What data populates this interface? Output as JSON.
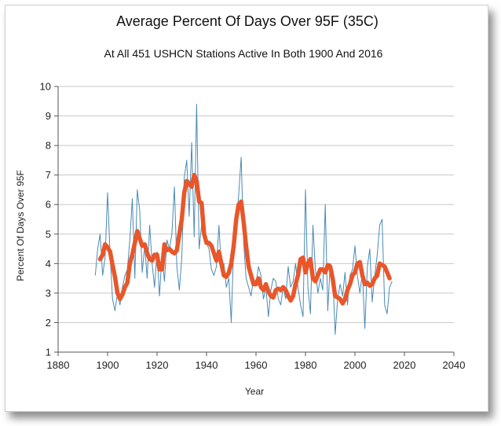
{
  "chart_data": {
    "type": "line",
    "title": "Average Percent Of Days Over 95F (35C)",
    "subtitle": "At All 451 USHCN Stations Active In Both 1900 And 2016",
    "xlabel": "Year",
    "ylabel": "Percent Of Days Over 95F",
    "xlim": [
      1880,
      2040
    ],
    "ylim": [
      1,
      10
    ],
    "xticks": [
      "1880",
      "1900",
      "1920",
      "1940",
      "1960",
      "1980",
      "2000",
      "2020",
      "2040"
    ],
    "yticks": [
      "1",
      "2",
      "3",
      "4",
      "5",
      "6",
      "7",
      "8",
      "9",
      "10"
    ],
    "grid": true,
    "colors": {
      "annual": "#4a8ab5",
      "smoothed": "#e8562a",
      "grid": "#c8c8c8"
    },
    "series": [
      {
        "kind": "annual",
        "x": [
          1895,
          1896,
          1897,
          1898,
          1899,
          1900,
          1901,
          1902,
          1903,
          1904,
          1905,
          1906,
          1907,
          1908,
          1909,
          1910,
          1911,
          1912,
          1913,
          1914,
          1915,
          1916,
          1917,
          1918,
          1919,
          1920,
          1921,
          1922,
          1923,
          1924,
          1925,
          1926,
          1927,
          1928,
          1929,
          1930,
          1931,
          1932,
          1933,
          1934,
          1935,
          1936,
          1937,
          1938,
          1939,
          1940,
          1941,
          1942,
          1943,
          1944,
          1945,
          1946,
          1947,
          1948,
          1949,
          1950,
          1951,
          1952,
          1953,
          1954,
          1955,
          1956,
          1957,
          1958,
          1959,
          1960,
          1961,
          1962,
          1963,
          1964,
          1965,
          1966,
          1967,
          1968,
          1969,
          1970,
          1971,
          1972,
          1973,
          1974,
          1975,
          1976,
          1977,
          1978,
          1979,
          1980,
          1981,
          1982,
          1983,
          1984,
          1985,
          1986,
          1987,
          1988,
          1989,
          1990,
          1991,
          1992,
          1993,
          1994,
          1995,
          1996,
          1997,
          1998,
          1999,
          2000,
          2001,
          2002,
          2003,
          2004,
          2005,
          2006,
          2007,
          2008,
          2009,
          2010,
          2011,
          2012,
          2013,
          2014,
          2015
        ],
        "y": [
          3.6,
          4.5,
          5.0,
          3.6,
          4.2,
          6.4,
          4.3,
          2.8,
          2.4,
          3.0,
          2.6,
          3.2,
          3.6,
          3.8,
          4.8,
          6.2,
          3.5,
          6.5,
          5.8,
          3.7,
          4.6,
          3.5,
          5.3,
          4.0,
          3.2,
          4.4,
          2.9,
          4.3,
          3.4,
          4.8,
          4.5,
          5.0,
          6.6,
          3.9,
          3.1,
          4.2,
          6.9,
          7.5,
          5.6,
          8.1,
          4.9,
          9.4,
          4.5,
          5.3,
          5.4,
          4.7,
          4.5,
          3.8,
          3.6,
          3.9,
          5.3,
          3.8,
          4.0,
          3.2,
          3.5,
          2.0,
          4.6,
          5.4,
          6.3,
          7.6,
          4.7,
          3.5,
          3.2,
          2.9,
          3.5,
          3.3,
          3.9,
          3.6,
          2.8,
          3.2,
          2.2,
          3.1,
          3.5,
          3.4,
          2.8,
          2.6,
          3.2,
          2.8,
          3.9,
          3.2,
          3.4,
          4.0,
          3.2,
          2.6,
          2.2,
          6.5,
          3.2,
          2.3,
          5.3,
          3.8,
          3.0,
          3.5,
          3.1,
          6.0,
          2.4,
          4.0,
          3.8,
          1.6,
          2.8,
          3.3,
          2.9,
          3.7,
          2.6,
          3.6,
          3.8,
          4.6,
          3.6,
          3.0,
          3.7,
          1.8,
          3.9,
          4.5,
          2.7,
          3.6,
          4.3,
          5.3,
          5.5,
          2.6,
          2.3,
          3.2,
          3.4
        ]
      },
      {
        "kind": "smoothed",
        "x": [
          1897,
          1898,
          1899,
          1900,
          1901,
          1902,
          1903,
          1904,
          1905,
          1906,
          1907,
          1908,
          1909,
          1910,
          1911,
          1912,
          1913,
          1914,
          1915,
          1916,
          1917,
          1918,
          1919,
          1920,
          1921,
          1922,
          1923,
          1924,
          1925,
          1926,
          1927,
          1928,
          1929,
          1930,
          1931,
          1932,
          1933,
          1934,
          1935,
          1936,
          1937,
          1938,
          1939,
          1940,
          1941,
          1942,
          1943,
          1944,
          1945,
          1946,
          1947,
          1948,
          1949,
          1950,
          1951,
          1952,
          1953,
          1954,
          1955,
          1956,
          1957,
          1958,
          1959,
          1960,
          1961,
          1962,
          1963,
          1964,
          1965,
          1966,
          1967,
          1968,
          1969,
          1970,
          1971,
          1972,
          1973,
          1974,
          1975,
          1976,
          1977,
          1978,
          1979,
          1980,
          1981,
          1982,
          1983,
          1984,
          1985,
          1986,
          1987,
          1988,
          1989,
          1990,
          1991,
          1992,
          1993,
          1994,
          1995,
          1996,
          1997,
          1998,
          1999,
          2000,
          2001,
          2002,
          2003,
          2004,
          2005,
          2006,
          2007,
          2008,
          2009,
          2010,
          2011,
          2012,
          2013,
          2014
        ],
        "y": [
          4.15,
          4.3,
          4.65,
          4.55,
          4.4,
          3.95,
          3.55,
          3.0,
          2.8,
          2.95,
          3.2,
          3.35,
          4.0,
          4.3,
          4.7,
          5.1,
          4.85,
          4.6,
          4.65,
          4.35,
          4.15,
          4.1,
          4.3,
          4.3,
          3.8,
          3.8,
          4.65,
          4.45,
          4.5,
          4.4,
          4.35,
          4.45,
          5.0,
          5.5,
          6.4,
          6.8,
          6.7,
          6.6,
          7.0,
          6.8,
          6.1,
          6.05,
          5.0,
          4.7,
          4.7,
          4.6,
          4.35,
          4.1,
          4.4,
          4.0,
          3.6,
          3.55,
          3.7,
          4.0,
          4.6,
          5.5,
          6.0,
          6.1,
          5.4,
          4.6,
          3.9,
          3.6,
          3.3,
          3.3,
          3.5,
          3.2,
          3.1,
          3.3,
          3.05,
          2.9,
          2.85,
          3.1,
          3.15,
          3.1,
          3.2,
          3.1,
          2.9,
          2.75,
          2.9,
          3.3,
          3.6,
          4.15,
          4.2,
          3.7,
          4.0,
          4.15,
          3.5,
          3.4,
          3.6,
          3.8,
          3.8,
          3.7,
          3.95,
          3.9,
          3.5,
          2.9,
          2.85,
          2.8,
          2.65,
          2.8,
          3.1,
          3.3,
          3.6,
          3.7,
          4.0,
          4.05,
          3.6,
          3.3,
          3.35,
          3.25,
          3.3,
          3.5,
          3.6,
          4.0,
          3.95,
          3.9,
          3.7,
          3.5
        ]
      }
    ]
  }
}
